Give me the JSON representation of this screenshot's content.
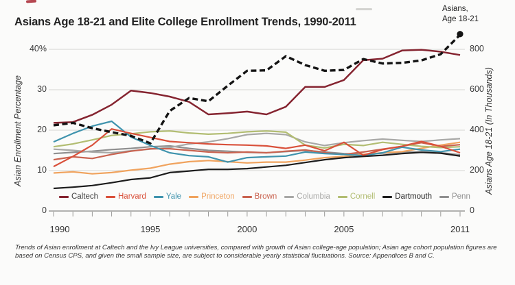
{
  "header": {
    "title": "Asians Age 18-21 and Elite College Enrollment Trends, 1990-2011",
    "annotation_line1": "Asians,",
    "annotation_line2": "Age 18-21"
  },
  "caption": {
    "text": "Trends of Asian enrollment at Caltech and the Ivy League universities, compared with growth of Asian college-age population; Asian age cohort population figures are based on Census CPS, and given the small sample size, are subject to considerable yearly statistical fluctuations. Source: Appendices B and C."
  },
  "chart_data": {
    "type": "line",
    "title": "Asians Age 18-21 and Elite College Enrollment Trends, 1990-2011",
    "x": [
      1990,
      1991,
      1992,
      1993,
      1994,
      1995,
      1996,
      1997,
      1998,
      1999,
      2000,
      2001,
      2002,
      2003,
      2004,
      2005,
      2006,
      2007,
      2008,
      2009,
      2010,
      2011
    ],
    "x_axis": {
      "tick_labels": [
        "1990",
        "1995",
        "2000",
        "2005",
        "2011"
      ],
      "tick_years": [
        1990,
        1995,
        2000,
        2005,
        2011
      ],
      "minor_ticks_every_year": true
    },
    "left_axis": {
      "label": "Asian Enrollment Percentage",
      "range": [
        0,
        40
      ],
      "ticks": [
        {
          "label": "40%",
          "value": 40
        },
        {
          "label": "30",
          "value": 30
        },
        {
          "label": "20",
          "value": 20
        },
        {
          "label": "10",
          "value": 10
        },
        {
          "label": "0",
          "value": 0
        }
      ]
    },
    "right_axis": {
      "label": "Asians Age 18-21 (In Thousands)",
      "range": [
        0,
        800
      ],
      "ticks": [
        {
          "label": "800",
          "value": 800
        },
        {
          "label": "600",
          "value": 600
        },
        {
          "label": "400",
          "value": 400
        },
        {
          "label": "200",
          "value": 200
        },
        {
          "label": "0",
          "value": 0
        }
      ]
    },
    "grid": "horizontal-only",
    "legend_position": "bottom-inside",
    "series": [
      {
        "name": "Penn",
        "axis": "left",
        "color": "#8f8f8f",
        "style": "solid",
        "values": [
          14.2,
          14.5,
          14.8,
          15.2,
          15.5,
          15.9,
          16.1,
          15.5,
          15.0,
          14.8,
          14.5,
          14.4,
          14.7,
          15.0,
          14.6,
          14.2,
          14.0,
          14.3,
          14.6,
          14.6,
          14.4,
          13.9
        ]
      },
      {
        "name": "Columbia",
        "axis": "left",
        "color": "#a8a8a6",
        "style": "solid",
        "values": [
          15.3,
          15.0,
          14.6,
          14.4,
          14.9,
          15.3,
          15.7,
          16.6,
          17.1,
          17.9,
          18.9,
          19.2,
          18.9,
          17.1,
          16.2,
          16.9,
          17.4,
          17.8,
          17.5,
          17.2,
          17.6,
          17.9
        ]
      },
      {
        "name": "Brown",
        "axis": "left",
        "color": "#c96350",
        "style": "solid",
        "values": [
          12.7,
          13.4,
          13.0,
          14.0,
          14.8,
          15.4,
          15.4,
          15.0,
          14.6,
          14.4,
          14.6,
          14.4,
          14.8,
          15.1,
          14.4,
          14.0,
          14.6,
          15.3,
          16.0,
          16.9,
          16.0,
          16.4
        ]
      },
      {
        "name": "Princeton",
        "axis": "left",
        "color": "#f0a35e",
        "style": "solid",
        "values": [
          9.4,
          9.7,
          9.2,
          9.5,
          10.1,
          10.6,
          11.6,
          12.2,
          12.5,
          12.2,
          11.9,
          12.1,
          12.1,
          12.6,
          13.2,
          13.5,
          14.0,
          14.4,
          14.7,
          15.5,
          16.3,
          17.0
        ]
      },
      {
        "name": "Cornell",
        "axis": "left",
        "color": "#b2bd72",
        "style": "solid",
        "values": [
          15.9,
          16.6,
          17.6,
          18.7,
          19.1,
          19.6,
          19.8,
          19.3,
          19.0,
          19.2,
          19.6,
          19.8,
          19.5,
          16.3,
          15.6,
          16.5,
          16.2,
          17.0,
          16.5,
          16.0,
          15.7,
          15.9
        ]
      },
      {
        "name": "Yale",
        "axis": "left",
        "color": "#3f93ad",
        "style": "solid",
        "values": [
          17.1,
          19.2,
          21.0,
          22.2,
          18.3,
          16.2,
          14.4,
          13.7,
          13.4,
          12.1,
          13.2,
          13.4,
          13.6,
          14.6,
          14.2,
          14.0,
          13.7,
          14.4,
          15.8,
          15.1,
          14.7,
          15.3
        ]
      },
      {
        "name": "Harvard",
        "axis": "left",
        "color": "#d9503a",
        "style": "solid",
        "values": [
          11.0,
          13.5,
          16.3,
          20.3,
          19.2,
          18.2,
          17.2,
          16.9,
          16.6,
          16.4,
          16.3,
          16.1,
          15.5,
          16.3,
          14.9,
          17.0,
          13.8,
          15.2,
          16.0,
          17.2,
          16.0,
          14.4
        ]
      },
      {
        "name": "Dartmouth",
        "axis": "left",
        "color": "#1c1c1c",
        "style": "solid",
        "values": [
          5.6,
          5.9,
          6.3,
          7.0,
          7.8,
          8.2,
          9.5,
          9.9,
          10.3,
          10.3,
          10.5,
          10.9,
          11.3,
          12.0,
          12.7,
          13.2,
          13.5,
          13.8,
          14.2,
          14.5,
          14.3,
          13.6
        ]
      },
      {
        "name": "Caltech",
        "axis": "left",
        "color": "#852430",
        "style": "solid",
        "values": [
          21.8,
          22.0,
          23.8,
          26.3,
          29.8,
          29.2,
          28.3,
          27.0,
          23.9,
          24.2,
          24.6,
          23.9,
          25.8,
          30.7,
          30.7,
          32.4,
          37.3,
          37.7,
          39.7,
          39.9,
          39.4,
          38.6
        ]
      },
      {
        "name": "Asians, Age 18-21",
        "axis": "right",
        "color": "#141414",
        "style": "dashed",
        "end_marker": "dot",
        "values": [
          424,
          436,
          410,
          390,
          372,
          335,
          495,
          559,
          543,
          620,
          694,
          696,
          766,
          722,
          694,
          698,
          752,
          730,
          733,
          745,
          776,
          872
        ]
      }
    ],
    "legend": [
      {
        "series": "Caltech",
        "label": "Caltech",
        "text_color": "#3c3c3c"
      },
      {
        "series": "Harvard",
        "label": "Harvard",
        "text_color": "#d9503a"
      },
      {
        "series": "Yale",
        "label": "Yale",
        "text_color": "#3f93ad"
      },
      {
        "series": "Princeton",
        "label": "Princeton",
        "text_color": "#f0a35e"
      },
      {
        "series": "Brown",
        "label": "Brown",
        "text_color": "#c96350"
      },
      {
        "series": "Columbia",
        "label": "Columbia",
        "text_color": "#a8a8a6"
      },
      {
        "series": "Cornell",
        "label": "Cornell",
        "text_color": "#b2bd72"
      },
      {
        "series": "Dartmouth",
        "label": "Dartmouth",
        "text_color": "#1c1c1c"
      },
      {
        "series": "Penn",
        "label": "Penn",
        "text_color": "#8f8f8f"
      }
    ],
    "colors": {
      "grid": "#d4d4d2",
      "axis": "#9a9a98",
      "background": "#fbfbfa"
    }
  }
}
